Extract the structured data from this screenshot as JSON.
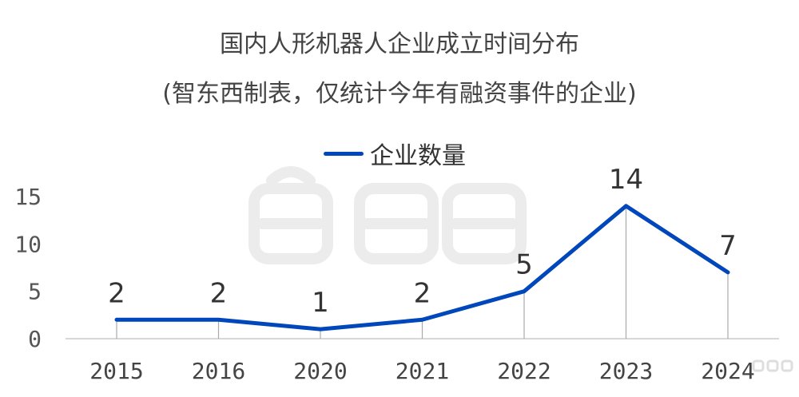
{
  "chart_data": {
    "type": "line",
    "title": "国内人形机器人企业成立时间分布",
    "subtitle": "(智东西制表，仅统计今年有融资事件的企业)",
    "categories": [
      "2015",
      "2016",
      "2020",
      "2021",
      "2022",
      "2023",
      "2024"
    ],
    "series": [
      {
        "name": "企业数量",
        "values": [
          2,
          2,
          1,
          2,
          5,
          14,
          7
        ],
        "color": "#0047bb"
      }
    ],
    "yticks": [
      0,
      5,
      10,
      15
    ],
    "ylim": [
      0,
      15
    ],
    "xlabel": "",
    "ylabel": "",
    "grid": false,
    "legend": "top-center",
    "data_labels": true
  },
  "watermark": "智東西"
}
